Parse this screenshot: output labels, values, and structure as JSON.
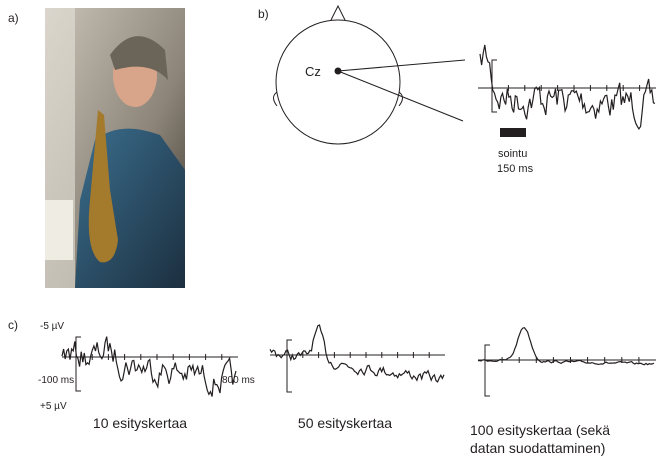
{
  "panels": {
    "a": {
      "label": "a)"
    },
    "b": {
      "label": "b)",
      "electrode": "Cz",
      "stimulus": {
        "name": "sointu",
        "duration": "150 ms"
      }
    },
    "c": {
      "label": "c)",
      "axis": {
        "top": "-5 µV",
        "start": "-100 ms",
        "end": "800 ms",
        "bottom": "+5 µV"
      },
      "captions": [
        "10 esityskertaa",
        "50 esityskertaa",
        "100  esityskertaa (sekä",
        "datan suodattaminen)"
      ]
    }
  }
}
